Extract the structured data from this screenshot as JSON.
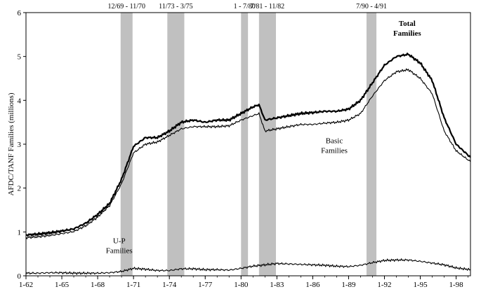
{
  "chart_data": {
    "type": "line",
    "title": "",
    "xlabel": "",
    "ylabel": "AFDC/TANF Families (millions)",
    "xlim": [
      1962.0,
      1999.2
    ],
    "ylim": [
      0,
      6
    ],
    "x_ticks": [
      {
        "x": 1962.0,
        "label": "1-62"
      },
      {
        "x": 1965.0,
        "label": "1-65"
      },
      {
        "x": 1968.0,
        "label": "1-68"
      },
      {
        "x": 1971.0,
        "label": "1-71"
      },
      {
        "x": 1974.0,
        "label": "1-74"
      },
      {
        "x": 1977.0,
        "label": "1-77"
      },
      {
        "x": 1980.0,
        "label": "1-80"
      },
      {
        "x": 1983.0,
        "label": "1-83"
      },
      {
        "x": 1986.0,
        "label": "1-86"
      },
      {
        "x": 1989.0,
        "label": "1-89"
      },
      {
        "x": 1992.0,
        "label": "1-92"
      },
      {
        "x": 1995.0,
        "label": "1-95"
      },
      {
        "x": 1998.0,
        "label": "1-98"
      }
    ],
    "y_ticks": [
      0,
      1,
      2,
      3,
      4,
      5,
      6
    ],
    "recessions": [
      {
        "start": 1969.92,
        "end": 1970.92,
        "label": "12/69 - 11/70"
      },
      {
        "start": 1973.83,
        "end": 1975.25,
        "label": "11/73 - 3/75"
      },
      {
        "start": 1980.0,
        "end": 1980.58,
        "label": "1 - 7/80"
      },
      {
        "start": 1981.5,
        "end": 1982.92,
        "label": "7/81 - 11/82"
      },
      {
        "start": 1990.5,
        "end": 1991.33,
        "label": "7/90 - 4/91"
      }
    ],
    "series": [
      {
        "name": "Total Families",
        "label_lines": [
          "Total",
          "Families"
        ],
        "color": "#000000",
        "x": [
          1962,
          1963,
          1964,
          1965,
          1966,
          1967,
          1968,
          1969,
          1970,
          1971,
          1972,
          1973,
          1974,
          1975,
          1976,
          1977,
          1978,
          1979,
          1980,
          1981,
          1981.5,
          1982,
          1983,
          1984,
          1985,
          1986,
          1987,
          1988,
          1989,
          1990,
          1991,
          1992,
          1993,
          1994,
          1995,
          1996,
          1997,
          1998,
          1999.2
        ],
        "values": [
          0.93,
          0.95,
          0.98,
          1.02,
          1.07,
          1.2,
          1.4,
          1.65,
          2.2,
          2.95,
          3.15,
          3.15,
          3.3,
          3.5,
          3.55,
          3.5,
          3.55,
          3.55,
          3.7,
          3.85,
          3.9,
          3.55,
          3.6,
          3.65,
          3.7,
          3.72,
          3.75,
          3.75,
          3.8,
          4.0,
          4.4,
          4.8,
          5.0,
          5.05,
          4.85,
          4.45,
          3.6,
          3.0,
          2.7
        ]
      },
      {
        "name": "Basic Families",
        "label_lines": [
          "Basic",
          "Families"
        ],
        "color": "#000000",
        "x": [
          1962,
          1963,
          1964,
          1965,
          1966,
          1967,
          1968,
          1969,
          1970,
          1971,
          1972,
          1973,
          1974,
          1975,
          1976,
          1977,
          1978,
          1979,
          1980,
          1981,
          1981.5,
          1982,
          1983,
          1984,
          1985,
          1986,
          1987,
          1988,
          1989,
          1990,
          1991,
          1992,
          1993,
          1994,
          1995,
          1996,
          1997,
          1998,
          1999.2
        ],
        "values": [
          0.87,
          0.89,
          0.92,
          0.96,
          1.01,
          1.14,
          1.34,
          1.6,
          2.1,
          2.8,
          3.0,
          3.05,
          3.2,
          3.35,
          3.4,
          3.4,
          3.4,
          3.42,
          3.55,
          3.65,
          3.7,
          3.3,
          3.35,
          3.4,
          3.45,
          3.45,
          3.48,
          3.5,
          3.55,
          3.7,
          4.1,
          4.45,
          4.65,
          4.7,
          4.5,
          4.15,
          3.3,
          2.85,
          2.6
        ]
      },
      {
        "name": "U-P Families",
        "label_lines": [
          "U-P",
          "Families"
        ],
        "color": "#000000",
        "x": [
          1962,
          1963,
          1964,
          1965,
          1966,
          1967,
          1968,
          1969,
          1970,
          1971,
          1972,
          1973,
          1974,
          1975,
          1976,
          1977,
          1978,
          1979,
          1980,
          1981,
          1982,
          1983,
          1984,
          1985,
          1986,
          1987,
          1988,
          1989,
          1990,
          1991,
          1992,
          1993,
          1994,
          1995,
          1996,
          1997,
          1998,
          1999.2
        ],
        "values": [
          0.06,
          0.06,
          0.07,
          0.07,
          0.06,
          0.06,
          0.06,
          0.07,
          0.1,
          0.17,
          0.15,
          0.12,
          0.12,
          0.16,
          0.16,
          0.14,
          0.14,
          0.13,
          0.17,
          0.22,
          0.25,
          0.28,
          0.27,
          0.26,
          0.25,
          0.24,
          0.22,
          0.21,
          0.24,
          0.3,
          0.35,
          0.36,
          0.36,
          0.33,
          0.29,
          0.25,
          0.18,
          0.14
        ]
      }
    ],
    "grid": false,
    "legend": "none"
  }
}
